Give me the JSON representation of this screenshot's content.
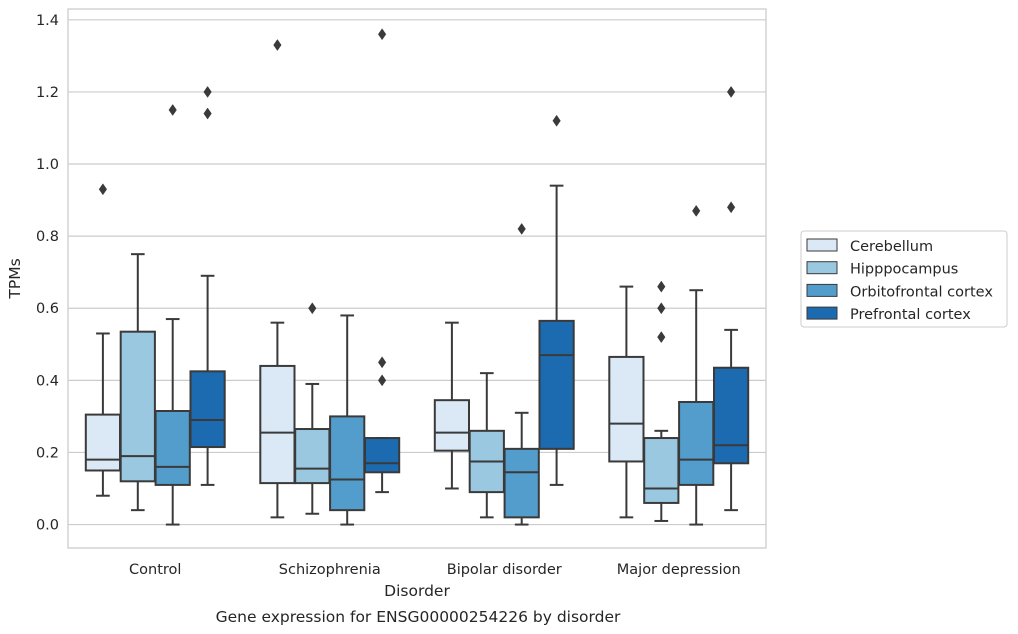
{
  "caption": "Gene expression for ENSG00000254226 by disorder",
  "chart_data": {
    "type": "box",
    "title": "",
    "xlabel": "Disorder",
    "ylabel": "TPMs",
    "ylim": [
      -0.065,
      1.43
    ],
    "yticks": [
      "0.0",
      "0.2",
      "0.4",
      "0.6",
      "0.8",
      "1.0",
      "1.2",
      "1.4"
    ],
    "grid": true,
    "legend_position": "right",
    "categories": [
      "Control",
      "Schizophrenia",
      "Bipolar disorder",
      "Major depression"
    ],
    "series": [
      {
        "name": "Cerebellum",
        "color": "#dbe9f6",
        "boxes": [
          {
            "whislo": 0.08,
            "q1": 0.15,
            "med": 0.18,
            "q3": 0.305,
            "whishi": 0.53,
            "fliers": [
              0.93
            ]
          },
          {
            "whislo": 0.02,
            "q1": 0.115,
            "med": 0.255,
            "q3": 0.44,
            "whishi": 0.56,
            "fliers": [
              1.33
            ]
          },
          {
            "whislo": 0.1,
            "q1": 0.205,
            "med": 0.255,
            "q3": 0.345,
            "whishi": 0.56,
            "fliers": []
          },
          {
            "whislo": 0.02,
            "q1": 0.175,
            "med": 0.28,
            "q3": 0.465,
            "whishi": 0.66,
            "fliers": []
          }
        ]
      },
      {
        "name": "Hipppocampus",
        "color": "#9ac8e0",
        "boxes": [
          {
            "whislo": 0.04,
            "q1": 0.12,
            "med": 0.19,
            "q3": 0.535,
            "whishi": 0.75,
            "fliers": []
          },
          {
            "whislo": 0.03,
            "q1": 0.115,
            "med": 0.155,
            "q3": 0.265,
            "whishi": 0.39,
            "fliers": [
              0.6
            ]
          },
          {
            "whislo": 0.02,
            "q1": 0.09,
            "med": 0.175,
            "q3": 0.26,
            "whishi": 0.42,
            "fliers": []
          },
          {
            "whislo": 0.01,
            "q1": 0.06,
            "med": 0.1,
            "q3": 0.24,
            "whishi": 0.26,
            "fliers": [
              0.66,
              0.6,
              0.52
            ]
          }
        ]
      },
      {
        "name": "Orbitofrontal cortex",
        "color": "#529dcc",
        "boxes": [
          {
            "whislo": 0.0,
            "q1": 0.11,
            "med": 0.16,
            "q3": 0.315,
            "whishi": 0.57,
            "fliers": [
              1.15
            ]
          },
          {
            "whislo": 0.0,
            "q1": 0.04,
            "med": 0.125,
            "q3": 0.3,
            "whishi": 0.58,
            "fliers": []
          },
          {
            "whislo": 0.0,
            "q1": 0.02,
            "med": 0.145,
            "q3": 0.21,
            "whishi": 0.31,
            "fliers": [
              0.82
            ]
          },
          {
            "whislo": 0.0,
            "q1": 0.11,
            "med": 0.18,
            "q3": 0.34,
            "whishi": 0.65,
            "fliers": [
              0.87
            ]
          }
        ]
      },
      {
        "name": "Prefrontal cortex",
        "color": "#1c6aaf",
        "boxes": [
          {
            "whislo": 0.11,
            "q1": 0.215,
            "med": 0.29,
            "q3": 0.425,
            "whishi": 0.69,
            "fliers": [
              1.2,
              1.14
            ]
          },
          {
            "whislo": 0.09,
            "q1": 0.145,
            "med": 0.17,
            "q3": 0.24,
            "whishi": 0.24,
            "fliers": [
              0.45,
              0.4,
              1.36
            ]
          },
          {
            "whislo": 0.11,
            "q1": 0.21,
            "med": 0.47,
            "q3": 0.565,
            "whishi": 0.94,
            "fliers": [
              1.12
            ]
          },
          {
            "whislo": 0.04,
            "q1": 0.17,
            "med": 0.22,
            "q3": 0.435,
            "whishi": 0.54,
            "fliers": [
              1.2,
              0.88
            ]
          }
        ]
      }
    ]
  }
}
